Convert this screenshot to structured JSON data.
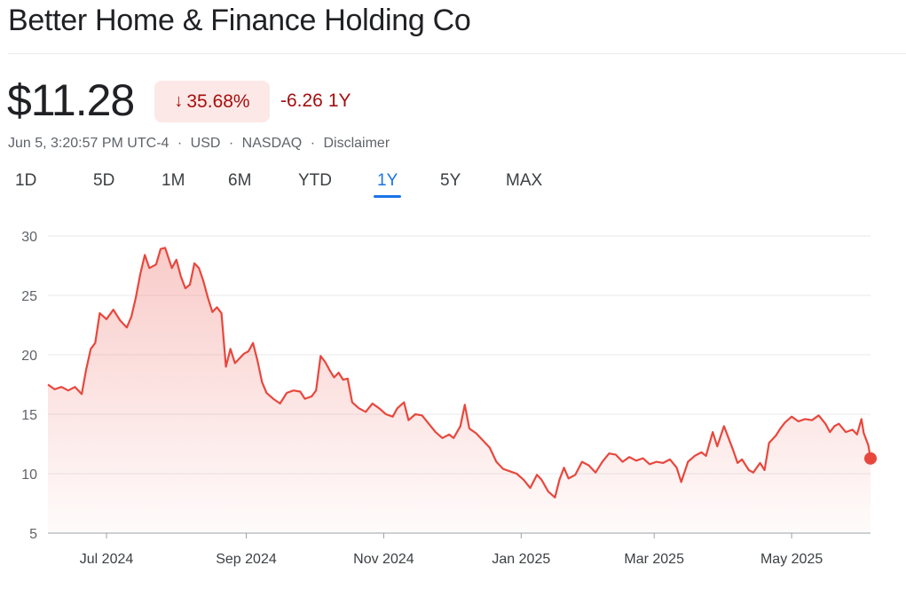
{
  "header": {
    "title": "Better Home & Finance Holding Co"
  },
  "quote": {
    "price": "$11.28",
    "change_pct": "35.68%",
    "change_pct_arrow": "down-arrow-icon",
    "change_abs": "-6.26",
    "change_period": "1Y",
    "timestamp": "Jun 5, 3:20:57 PM UTC-4",
    "currency": "USD",
    "exchange": "NASDAQ",
    "disclaimer": "Disclaimer",
    "separator": "·"
  },
  "ranges": {
    "items": [
      "1D",
      "5D",
      "1M",
      "6M",
      "YTD",
      "1Y",
      "5Y",
      "MAX"
    ],
    "selected": "1Y"
  },
  "colors": {
    "line": "#e8473d",
    "negative_text": "#a50e0e",
    "badge_bg": "#fce8e6",
    "accent": "#1a73e8"
  },
  "chart_data": {
    "type": "area",
    "title": "",
    "xlabel": "",
    "ylabel": "",
    "ylim": [
      5,
      30
    ],
    "yticks": [
      30,
      25,
      20,
      15,
      10,
      5
    ],
    "x_start": "2024-06-05",
    "x_end": "2025-06-05",
    "xticks": [
      {
        "label": "Jul 2024",
        "date": "2024-07-01"
      },
      {
        "label": "Sep 2024",
        "date": "2024-09-01"
      },
      {
        "label": "Nov 2024",
        "date": "2024-11-01"
      },
      {
        "label": "Jan 2025",
        "date": "2025-01-01"
      },
      {
        "label": "Mar 2025",
        "date": "2025-03-01"
      },
      {
        "label": "May 2025",
        "date": "2025-05-01"
      }
    ],
    "grid": true,
    "legend": "none",
    "series": [
      {
        "values": [
          [
            "2024-06-05",
            17.5
          ],
          [
            "2024-06-08",
            17.1
          ],
          [
            "2024-06-11",
            17.3
          ],
          [
            "2024-06-14",
            17.0
          ],
          [
            "2024-06-17",
            17.3
          ],
          [
            "2024-06-20",
            16.7
          ],
          [
            "2024-06-22",
            18.8
          ],
          [
            "2024-06-24",
            20.5
          ],
          [
            "2024-06-26",
            21.0
          ],
          [
            "2024-06-28",
            23.5
          ],
          [
            "2024-07-01",
            23.0
          ],
          [
            "2024-07-04",
            23.8
          ],
          [
            "2024-07-07",
            22.9
          ],
          [
            "2024-07-10",
            22.3
          ],
          [
            "2024-07-12",
            23.2
          ],
          [
            "2024-07-14",
            24.8
          ],
          [
            "2024-07-16",
            26.8
          ],
          [
            "2024-07-18",
            28.4
          ],
          [
            "2024-07-20",
            27.3
          ],
          [
            "2024-07-23",
            27.6
          ],
          [
            "2024-07-25",
            28.9
          ],
          [
            "2024-07-27",
            29.0
          ],
          [
            "2024-07-30",
            27.3
          ],
          [
            "2024-08-01",
            28.0
          ],
          [
            "2024-08-03",
            26.6
          ],
          [
            "2024-08-05",
            25.6
          ],
          [
            "2024-08-07",
            25.9
          ],
          [
            "2024-08-09",
            27.7
          ],
          [
            "2024-08-11",
            27.3
          ],
          [
            "2024-08-13",
            26.2
          ],
          [
            "2024-08-15",
            24.8
          ],
          [
            "2024-08-17",
            23.6
          ],
          [
            "2024-08-19",
            24.0
          ],
          [
            "2024-08-21",
            23.5
          ],
          [
            "2024-08-23",
            19.0
          ],
          [
            "2024-08-25",
            20.5
          ],
          [
            "2024-08-27",
            19.3
          ],
          [
            "2024-08-29",
            19.7
          ],
          [
            "2024-08-31",
            20.1
          ],
          [
            "2024-09-02",
            20.3
          ],
          [
            "2024-09-04",
            21.0
          ],
          [
            "2024-09-06",
            19.5
          ],
          [
            "2024-09-08",
            17.7
          ],
          [
            "2024-09-10",
            16.8
          ],
          [
            "2024-09-13",
            16.3
          ],
          [
            "2024-09-16",
            15.9
          ],
          [
            "2024-09-19",
            16.8
          ],
          [
            "2024-09-22",
            17.0
          ],
          [
            "2024-09-25",
            16.9
          ],
          [
            "2024-09-27",
            16.3
          ],
          [
            "2024-09-30",
            16.5
          ],
          [
            "2024-10-02",
            17.0
          ],
          [
            "2024-10-04",
            19.9
          ],
          [
            "2024-10-06",
            19.4
          ],
          [
            "2024-10-08",
            18.7
          ],
          [
            "2024-10-10",
            18.1
          ],
          [
            "2024-10-12",
            18.5
          ],
          [
            "2024-10-14",
            17.9
          ],
          [
            "2024-10-16",
            18.0
          ],
          [
            "2024-10-18",
            16.0
          ],
          [
            "2024-10-21",
            15.5
          ],
          [
            "2024-10-24",
            15.2
          ],
          [
            "2024-10-27",
            15.9
          ],
          [
            "2024-10-30",
            15.5
          ],
          [
            "2024-11-02",
            15.0
          ],
          [
            "2024-11-05",
            14.8
          ],
          [
            "2024-11-07",
            15.5
          ],
          [
            "2024-11-10",
            16.0
          ],
          [
            "2024-11-12",
            14.5
          ],
          [
            "2024-11-15",
            15.0
          ],
          [
            "2024-11-18",
            14.9
          ],
          [
            "2024-11-21",
            14.2
          ],
          [
            "2024-11-24",
            13.5
          ],
          [
            "2024-11-27",
            13.0
          ],
          [
            "2024-11-30",
            13.3
          ],
          [
            "2024-12-02",
            13.0
          ],
          [
            "2024-12-05",
            14.0
          ],
          [
            "2024-12-07",
            15.8
          ],
          [
            "2024-12-09",
            13.8
          ],
          [
            "2024-12-12",
            13.4
          ],
          [
            "2024-12-15",
            12.8
          ],
          [
            "2024-12-18",
            12.2
          ],
          [
            "2024-12-21",
            11.0
          ],
          [
            "2024-12-24",
            10.4
          ],
          [
            "2024-12-27",
            10.2
          ],
          [
            "2024-12-30",
            10.0
          ],
          [
            "2025-01-02",
            9.5
          ],
          [
            "2025-01-05",
            8.8
          ],
          [
            "2025-01-08",
            9.9
          ],
          [
            "2025-01-10",
            9.5
          ],
          [
            "2025-01-13",
            8.5
          ],
          [
            "2025-01-16",
            8.0
          ],
          [
            "2025-01-18",
            9.5
          ],
          [
            "2025-01-20",
            10.5
          ],
          [
            "2025-01-22",
            9.6
          ],
          [
            "2025-01-25",
            9.9
          ],
          [
            "2025-01-28",
            11.0
          ],
          [
            "2025-01-31",
            10.7
          ],
          [
            "2025-02-03",
            10.1
          ],
          [
            "2025-02-06",
            11.0
          ],
          [
            "2025-02-09",
            11.7
          ],
          [
            "2025-02-12",
            11.6
          ],
          [
            "2025-02-15",
            11.0
          ],
          [
            "2025-02-18",
            11.4
          ],
          [
            "2025-02-21",
            11.1
          ],
          [
            "2025-02-24",
            11.3
          ],
          [
            "2025-02-27",
            10.8
          ],
          [
            "2025-03-02",
            11.0
          ],
          [
            "2025-03-05",
            10.9
          ],
          [
            "2025-03-08",
            11.2
          ],
          [
            "2025-03-11",
            10.5
          ],
          [
            "2025-03-13",
            9.3
          ],
          [
            "2025-03-16",
            11.0
          ],
          [
            "2025-03-19",
            11.5
          ],
          [
            "2025-03-22",
            11.8
          ],
          [
            "2025-03-24",
            11.5
          ],
          [
            "2025-03-27",
            13.5
          ],
          [
            "2025-03-29",
            12.3
          ],
          [
            "2025-04-01",
            14.0
          ],
          [
            "2025-04-03",
            13.0
          ],
          [
            "2025-04-05",
            12.0
          ],
          [
            "2025-04-07",
            10.9
          ],
          [
            "2025-04-09",
            11.2
          ],
          [
            "2025-04-12",
            10.3
          ],
          [
            "2025-04-14",
            10.1
          ],
          [
            "2025-04-17",
            10.9
          ],
          [
            "2025-04-19",
            10.3
          ],
          [
            "2025-04-21",
            12.6
          ],
          [
            "2025-04-24",
            13.2
          ],
          [
            "2025-04-26",
            13.8
          ],
          [
            "2025-04-28",
            14.3
          ],
          [
            "2025-05-01",
            14.8
          ],
          [
            "2025-05-04",
            14.4
          ],
          [
            "2025-05-07",
            14.6
          ],
          [
            "2025-05-10",
            14.5
          ],
          [
            "2025-05-13",
            14.9
          ],
          [
            "2025-05-16",
            14.2
          ],
          [
            "2025-05-18",
            13.5
          ],
          [
            "2025-05-20",
            14.0
          ],
          [
            "2025-05-22",
            14.2
          ],
          [
            "2025-05-25",
            13.5
          ],
          [
            "2025-05-28",
            13.7
          ],
          [
            "2025-05-30",
            13.3
          ],
          [
            "2025-06-01",
            14.6
          ],
          [
            "2025-06-02",
            13.4
          ],
          [
            "2025-06-04",
            12.4
          ],
          [
            "2025-06-05",
            11.28
          ]
        ]
      }
    ]
  }
}
